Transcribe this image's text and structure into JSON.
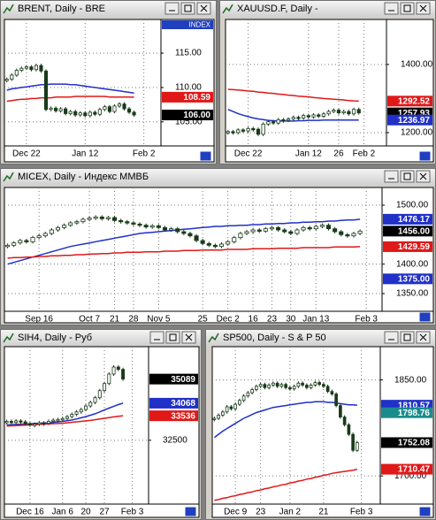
{
  "chart_data": [
    {
      "type": "candlestick",
      "title": "BRENT, Daily - BRE",
      "axis_caption": "INDEX",
      "categories": [
        null,
        null,
        null,
        null,
        "Dec 22",
        null,
        null,
        null,
        null,
        null,
        null,
        null,
        null,
        null,
        null,
        null,
        "Jan 12",
        null,
        null,
        null,
        null,
        null,
        null,
        null,
        null,
        null,
        null,
        null,
        "Feb 2",
        null,
        null,
        null
      ],
      "values": [
        111.2,
        111.8,
        112.5,
        112.8,
        113.0,
        112.6,
        113.2,
        112.4,
        106.8,
        107.0,
        106.6,
        106.9,
        106.2,
        106.5,
        106.0,
        106.3,
        105.9,
        106.4,
        106.1,
        106.8,
        107.2,
        106.5,
        107.3,
        107.6,
        106.9,
        106.4,
        106.0,
        null,
        null,
        null,
        null,
        null
      ],
      "series": [
        {
          "color": "#2030c8",
          "values": [
            109.6,
            109.8,
            109.9,
            110.0,
            110.1,
            110.2,
            110.3,
            110.4,
            110.4,
            110.5,
            110.5,
            110.5,
            110.5,
            110.4,
            110.4,
            110.3,
            110.2,
            110.1,
            110.0,
            109.9,
            109.8,
            109.7,
            109.6,
            109.5,
            109.4,
            109.3,
            109.2,
            null,
            null,
            null,
            null,
            null
          ]
        },
        {
          "color": "#e01818",
          "values": [
            108.0,
            108.1,
            108.2,
            108.3,
            108.3,
            108.4,
            108.4,
            108.5,
            108.5,
            108.5,
            108.6,
            108.6,
            108.6,
            108.6,
            108.7,
            108.7,
            108.7,
            108.7,
            108.7,
            108.7,
            108.7,
            108.6,
            108.6,
            108.6,
            108.6,
            108.6,
            108.59,
            null,
            null,
            null,
            null,
            null
          ]
        }
      ],
      "ylim": [
        101.5,
        119.9
      ],
      "yticks": [
        {
          "value": 115,
          "label": "115.00"
        },
        {
          "value": 110,
          "label": "110.00"
        },
        {
          "value": 105,
          "label": "105.00"
        }
      ],
      "tags": [
        {
          "value": 108.59,
          "color": "#e01818"
        },
        {
          "value": 106,
          "label": "106.00",
          "color": "#000000"
        }
      ],
      "grid": true
    },
    {
      "type": "candlestick",
      "title": "XAUUSD.F, Daily -",
      "categories": [
        null,
        null,
        null,
        null,
        "Dec 22",
        null,
        null,
        null,
        null,
        null,
        null,
        null,
        null,
        null,
        null,
        null,
        "Jan 12",
        null,
        null,
        null,
        null,
        null,
        "26",
        null,
        null,
        null,
        null,
        "Feb 2",
        null,
        null,
        null,
        null
      ],
      "values": [
        1203,
        1200,
        1208,
        1205,
        1212,
        1210,
        1195,
        1225,
        1232,
        1228,
        1238,
        1236,
        1240,
        1245,
        1243,
        1250,
        1246,
        1252,
        1248,
        1255,
        1262,
        1266,
        1258,
        1262,
        1255,
        1268,
        1257.93,
        null,
        null,
        null,
        null,
        null
      ],
      "series": [
        {
          "color": "#2030c8",
          "values": [
            1268,
            1262,
            1256,
            1251,
            1247,
            1243,
            1240,
            1238,
            1236,
            1235,
            1234,
            1234,
            1234,
            1234,
            1235,
            1235,
            1236,
            1236,
            1236,
            1237,
            1237,
            1237,
            1237,
            1237,
            1237,
            1237,
            1236.97,
            null,
            null,
            null,
            null,
            null
          ]
        },
        {
          "color": "#e01818",
          "values": [
            1327,
            1326,
            1325,
            1324,
            1322,
            1321,
            1319,
            1318,
            1316,
            1315,
            1313,
            1312,
            1310,
            1309,
            1307,
            1306,
            1305,
            1303,
            1302,
            1300,
            1299,
            1298,
            1297,
            1296,
            1294,
            1293,
            1292.52,
            null,
            null,
            null,
            null,
            null
          ]
        }
      ],
      "ylim": [
        1161,
        1532
      ],
      "yticks": [
        {
          "value": 1400,
          "label": "1400.00"
        },
        {
          "value": 1200,
          "label": "1200.00"
        }
      ],
      "tags": [
        {
          "value": 1292.52,
          "color": "#e01818"
        },
        {
          "value": 1257.93,
          "color": "#000000"
        },
        {
          "value": 1236.97,
          "color": "#2030c8"
        }
      ],
      "grid": true
    },
    {
      "type": "candlestick",
      "title": "MICEX, Daily - Индекс ММВБ",
      "categories": [
        null,
        null,
        null,
        null,
        null,
        "Sep 16",
        null,
        null,
        null,
        null,
        null,
        null,
        null,
        "Oct 7",
        null,
        null,
        null,
        "21",
        null,
        null,
        "28",
        null,
        null,
        null,
        "Nov 5",
        null,
        null,
        null,
        null,
        null,
        null,
        "25",
        null,
        null,
        null,
        "Dec 2",
        null,
        null,
        null,
        "16",
        null,
        null,
        "23",
        null,
        null,
        "30",
        null,
        null,
        null,
        "Jan 13",
        null,
        null,
        null,
        null,
        null,
        null,
        null,
        "Feb 3",
        null,
        null
      ],
      "values": [
        1432,
        1436,
        1440,
        1438,
        1445,
        1448,
        1452,
        1458,
        1462,
        1466,
        1470,
        1472,
        1476,
        1478,
        1480,
        1477,
        1479,
        1474,
        1472,
        1470,
        1468,
        1466,
        1463,
        1465,
        1462,
        1458,
        1460,
        1455,
        1452,
        1448,
        1440,
        1435,
        1432,
        1430,
        1434,
        1438,
        1445,
        1452,
        1455,
        1458,
        1456,
        1460,
        1462,
        1458,
        1455,
        1452,
        1458,
        1462,
        1460,
        1464,
        1466,
        1460,
        1455,
        1450,
        1448,
        1452,
        1456,
        null,
        null,
        null
      ],
      "series": [
        {
          "color": "#2030c8",
          "values": [
            1400,
            1403,
            1406,
            1409,
            1412,
            1415,
            1418,
            1421,
            1424,
            1427,
            1430,
            1432,
            1434,
            1436,
            1438,
            1440,
            1442,
            1444,
            1446,
            1448,
            1450,
            1452,
            1453,
            1454,
            1455,
            1456,
            1457,
            1458,
            1459,
            1460,
            1461,
            1462,
            1463,
            1464,
            1464,
            1465,
            1465,
            1466,
            1466,
            1467,
            1467,
            1468,
            1468,
            1469,
            1469,
            1470,
            1470,
            1471,
            1471,
            1472,
            1472,
            1473,
            1473,
            1474,
            1475,
            1475,
            1476.17,
            null,
            null,
            null
          ]
        },
        {
          "color": "#e01818",
          "values": [
            1410,
            1411,
            1411,
            1412,
            1412,
            1413,
            1413,
            1414,
            1414,
            1415,
            1415,
            1416,
            1416,
            1417,
            1417,
            1418,
            1418,
            1419,
            1419,
            1420,
            1420,
            1420,
            1421,
            1421,
            1421,
            1422,
            1422,
            1422,
            1423,
            1423,
            1423,
            1424,
            1424,
            1424,
            1424,
            1425,
            1425,
            1425,
            1425,
            1426,
            1426,
            1426,
            1426,
            1427,
            1427,
            1427,
            1427,
            1428,
            1428,
            1428,
            1428,
            1428,
            1429,
            1429,
            1429,
            1429,
            1429.59,
            null,
            null,
            null
          ]
        }
      ],
      "ylim": [
        1320,
        1530
      ],
      "yticks": [
        {
          "value": 1500,
          "label": "1500.00"
        },
        {
          "value": 1400,
          "label": "1400.00"
        },
        {
          "value": 1350,
          "label": "1350.00"
        }
      ],
      "tags": [
        {
          "value": 1476.17,
          "color": "#2030c8"
        },
        {
          "value": 1456,
          "label": "1456.00",
          "color": "#000000"
        },
        {
          "value": 1429.59,
          "color": "#e01818"
        },
        {
          "value": 1375,
          "label": "1375.00",
          "color": "#2030c8"
        }
      ],
      "grid": true
    },
    {
      "type": "candlestick",
      "title": "SIH4, Daily - Руб",
      "categories": [
        null,
        null,
        null,
        null,
        null,
        "Dec 16",
        null,
        null,
        null,
        null,
        null,
        null,
        "Jan 6",
        null,
        null,
        null,
        null,
        "20",
        null,
        null,
        null,
        "27",
        null,
        null,
        null,
        null,
        null,
        "Feb 3",
        null,
        null,
        null
      ],
      "values": [
        33300,
        33250,
        33320,
        33280,
        33200,
        33150,
        33180,
        33240,
        33220,
        33300,
        33350,
        33380,
        33420,
        33500,
        33600,
        33700,
        33800,
        33950,
        34100,
        34300,
        34600,
        34900,
        35300,
        35600,
        35500,
        35089,
        null,
        null,
        null,
        null,
        null
      ],
      "series": [
        {
          "color": "#2030c8",
          "values": [
            33150,
            33160,
            33170,
            33180,
            33190,
            33200,
            33210,
            33220,
            33230,
            33240,
            33260,
            33280,
            33300,
            33330,
            33360,
            33400,
            33450,
            33500,
            33560,
            33620,
            33700,
            33780,
            33860,
            33940,
            34010,
            34068,
            null,
            null,
            null,
            null,
            null
          ]
        },
        {
          "color": "#e01818",
          "values": [
            33100,
            33110,
            33120,
            33130,
            33140,
            33150,
            33160,
            33170,
            33180,
            33190,
            33200,
            33210,
            33220,
            33240,
            33260,
            33280,
            33300,
            33320,
            33340,
            33370,
            33400,
            33430,
            33460,
            33490,
            33515,
            33536,
            null,
            null,
            null,
            null,
            null
          ]
        }
      ],
      "ylim": [
        29800,
        36460
      ],
      "yticks": [
        32500
      ],
      "tags": [
        {
          "value": 35089,
          "color": "#000000"
        },
        {
          "value": 34068,
          "color": "#2030c8"
        },
        {
          "value": 33536,
          "color": "#e01818"
        }
      ],
      "grid": true
    },
    {
      "type": "candlestick",
      "title": "SP500, Daily - S & P 50",
      "categories": [
        null,
        null,
        null,
        null,
        null,
        "Dec 9",
        null,
        null,
        null,
        null,
        null,
        "23",
        null,
        null,
        null,
        null,
        null,
        null,
        "Jan 2",
        null,
        null,
        null,
        null,
        null,
        null,
        null,
        "21",
        null,
        null,
        null,
        null,
        null,
        null,
        null,
        null,
        "Feb 3",
        null,
        null,
        null,
        null
      ],
      "values": [
        1790,
        1795,
        1800,
        1808,
        1805,
        1812,
        1818,
        1825,
        1830,
        1835,
        1840,
        1843,
        1838,
        1842,
        1845,
        1840,
        1843,
        1838,
        1836,
        1840,
        1845,
        1842,
        1838,
        1842,
        1846,
        1843,
        1840,
        1832,
        1828,
        1810,
        1792,
        1780,
        1765,
        1740,
        1752.08,
        null,
        null,
        null,
        null,
        null
      ],
      "series": [
        {
          "color": "#2030c8",
          "values": [
            1760,
            1765,
            1770,
            1774,
            1778,
            1782,
            1786,
            1790,
            1793,
            1796,
            1799,
            1801,
            1803,
            1805,
            1807,
            1808,
            1809,
            1810,
            1811,
            1812,
            1813,
            1814,
            1815,
            1815,
            1816,
            1816,
            1816,
            1815,
            1815,
            1814,
            1813,
            1812,
            1811,
            1811,
            1810.57,
            null,
            null,
            null,
            null,
            null
          ]
        },
        {
          "color": "#e01818",
          "values": [
            1662,
            1663,
            1665,
            1666,
            1668,
            1669,
            1671,
            1672,
            1674,
            1675,
            1677,
            1678,
            1680,
            1681,
            1683,
            1684,
            1686,
            1687,
            1689,
            1690,
            1692,
            1693,
            1695,
            1696,
            1698,
            1699,
            1701,
            1702,
            1704,
            1705,
            1706,
            1707,
            1708,
            1709,
            1710.47,
            null,
            null,
            null,
            null,
            null
          ]
        }
      ],
      "ylim": [
        1656,
        1902
      ],
      "yticks": [
        {
          "value": 1850,
          "label": "1850.00"
        },
        {
          "value": 1700,
          "label": "1700.00"
        }
      ],
      "tags": [
        {
          "value": 1810.57,
          "color": "#2030c8"
        },
        {
          "value": 1798.76,
          "color": "#1a8c8c"
        },
        {
          "value": 1752.08,
          "color": "#000000"
        },
        {
          "value": 1710.47,
          "color": "#e01818"
        }
      ],
      "grid": true
    }
  ]
}
